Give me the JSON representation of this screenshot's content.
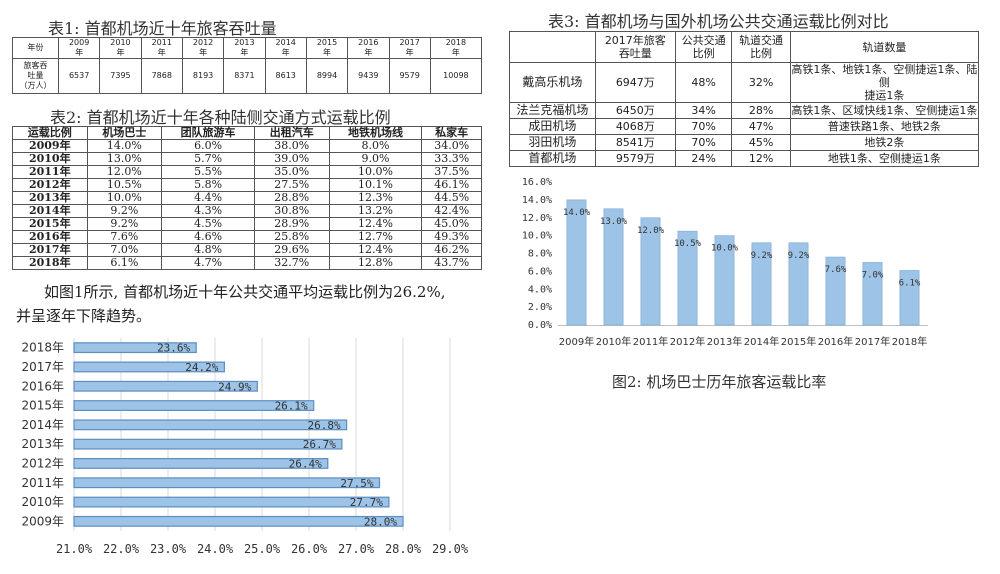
{
  "table1": {
    "caption": "表1: 首都机场近十年旅客吞吐量",
    "header": [
      "年份",
      "2009\n年",
      "2010\n年",
      "2011\n年",
      "2012\n年",
      "2013\n年",
      "2014\n年",
      "2015\n年",
      "2016\n年",
      "2017\n年",
      "2018\n年"
    ],
    "row": [
      "旅客吞\n吐量\n（万人）",
      "6537",
      "7395",
      "7868",
      "8193",
      "8371",
      "8613",
      "8994",
      "9439",
      "9579",
      "10098"
    ]
  },
  "table2": {
    "caption": "表2: 首都机场近十年各种陆侧交通方式运载比例",
    "header": [
      "运载比例",
      "机场巴士",
      "团队旅游车",
      "出租汽车",
      "地铁机场线",
      "私家车"
    ],
    "rows": [
      [
        "2009年",
        "14.0%",
        "6.0%",
        "38.0%",
        "8.0%",
        "34.0%"
      ],
      [
        "2010年",
        "13.0%",
        "5.7%",
        "39.0%",
        "9.0%",
        "33.3%"
      ],
      [
        "2011年",
        "12.0%",
        "5.5%",
        "35.0%",
        "10.0%",
        "37.5%"
      ],
      [
        "2012年",
        "10.5%",
        "5.8%",
        "27.5%",
        "10.1%",
        "46.1%"
      ],
      [
        "2013年",
        "10.0%",
        "4.4%",
        "28.8%",
        "12.3%",
        "44.5%"
      ],
      [
        "2014年",
        "9.2%",
        "4.3%",
        "30.8%",
        "13.2%",
        "42.4%"
      ],
      [
        "2015年",
        "9.2%",
        "4.5%",
        "28.9%",
        "12.4%",
        "45.0%"
      ],
      [
        "2016年",
        "7.6%",
        "4.6%",
        "25.8%",
        "12.7%",
        "49.3%"
      ],
      [
        "2017年",
        "7.0%",
        "4.8%",
        "29.6%",
        "12.4%",
        "46.2%"
      ],
      [
        "2018年",
        "6.1%",
        "4.7%",
        "32.7%",
        "12.8%",
        "43.7%"
      ]
    ]
  },
  "paragraph": {
    "line1": "如图1所示, 首都机场近十年公共交通平均运载比例为26.2%,",
    "line2": "并呈逐年下降趋势。"
  },
  "table3": {
    "caption": "表3: 首都机场与国外机场公共交通运载比例对比",
    "header": [
      "",
      "2017年旅客\n吞吐量",
      "公共交通\n比例",
      "轨道交通\n比例",
      "轨道数量"
    ],
    "rows": [
      [
        "戴高乐机场",
        "6947万",
        "48%",
        "32%",
        "高铁1条、地铁1条、空侧捷运1条、陆侧\n捷运1条"
      ],
      [
        "法兰克福机场",
        "6450万",
        "34%",
        "28%",
        "高铁1条、区域快线1条、空侧捷运1条"
      ],
      [
        "成田机场",
        "4068万",
        "70%",
        "47%",
        "普速铁路1条、地铁2条"
      ],
      [
        "羽田机场",
        "8541万",
        "70%",
        "45%",
        "地铁2条"
      ],
      [
        "首都机场",
        "9579万",
        "24%",
        "12%",
        "地铁1条、空侧捷运1条"
      ]
    ]
  },
  "figure2_caption": "图2: 机场巴士历年旅客运载比率",
  "chart_data": [
    {
      "type": "bar",
      "orientation": "vertical",
      "title": "",
      "categories": [
        "2009年",
        "2010年",
        "2011年",
        "2012年",
        "2013年",
        "2014年",
        "2015年",
        "2016年",
        "2017年",
        "2018年"
      ],
      "values": [
        14.0,
        13.0,
        12.0,
        10.5,
        10.0,
        9.2,
        9.2,
        7.6,
        7.0,
        6.1
      ],
      "data_labels": [
        "14.0%",
        "13.0%",
        "12.0%",
        "10.5%",
        "10.0%",
        "9.2%",
        "9.2%",
        "7.6%",
        "7.0%",
        "6.1%"
      ],
      "yticks": [
        "0.0%",
        "2.0%",
        "4.0%",
        "6.0%",
        "8.0%",
        "10.0%",
        "12.0%",
        "14.0%",
        "16.0%"
      ],
      "ylim": [
        0,
        16
      ],
      "grid": false,
      "bar_color": "#9dc3e6"
    },
    {
      "type": "bar",
      "orientation": "horizontal",
      "title": "",
      "categories": [
        "2018年",
        "2017年",
        "2016年",
        "2015年",
        "2014年",
        "2013年",
        "2012年",
        "2011年",
        "2010年",
        "2009年"
      ],
      "values": [
        23.6,
        24.2,
        24.9,
        26.1,
        26.8,
        26.7,
        26.4,
        27.5,
        27.7,
        28.0
      ],
      "data_labels": [
        "23.6%",
        "24.2%",
        "24.9%",
        "26.1%",
        "26.8%",
        "26.7%",
        "26.4%",
        "27.5%",
        "27.7%",
        "28.0%"
      ],
      "xticks": [
        "21.0%",
        "22.0%",
        "23.0%",
        "24.0%",
        "25.0%",
        "26.0%",
        "27.0%",
        "28.0%",
        "29.0%"
      ],
      "xlim": [
        21,
        29
      ],
      "grid": true,
      "bar_color": "#9dc3e6"
    }
  ]
}
